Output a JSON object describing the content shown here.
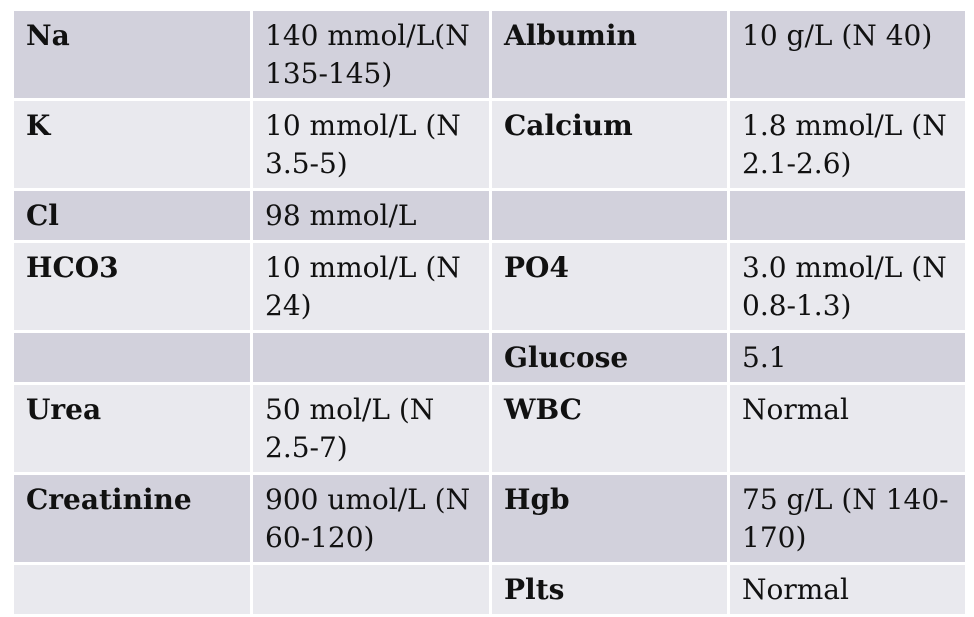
{
  "rows": [
    {
      "c1": "Na",
      "c2": "140 mmol/L(N 135-145)",
      "c3": "Albumin",
      "c4": "10 g/L (N 40)"
    },
    {
      "c1": "K",
      "c2": "10 mmol/L (N 3.5-5)",
      "c3": "Calcium",
      "c4": "1.8 mmol/L (N 2.1-2.6)"
    },
    {
      "c1": "Cl",
      "c2": "98 mmol/L",
      "c3": "",
      "c4": ""
    },
    {
      "c1": "HCO3",
      "c2": "10 mmol/L (N 24)",
      "c3": "PO4",
      "c4": "3.0 mmol/L (N 0.8-1.3)"
    },
    {
      "c1": "",
      "c2": "",
      "c3": "Glucose",
      "c4": "5.1"
    },
    {
      "c1": "Urea",
      "c2": "50 mol/L (N 2.5-7)",
      "c3": "WBC",
      "c4": "Normal"
    },
    {
      "c1": "Creatinine",
      "c2": "900 umol/L (N 60-120)",
      "c3": "Hgb",
      "c4": "75 g/L (N 140-170)"
    },
    {
      "c1": "",
      "c2": "",
      "c3": "Plts",
      "c4": "Normal"
    }
  ]
}
